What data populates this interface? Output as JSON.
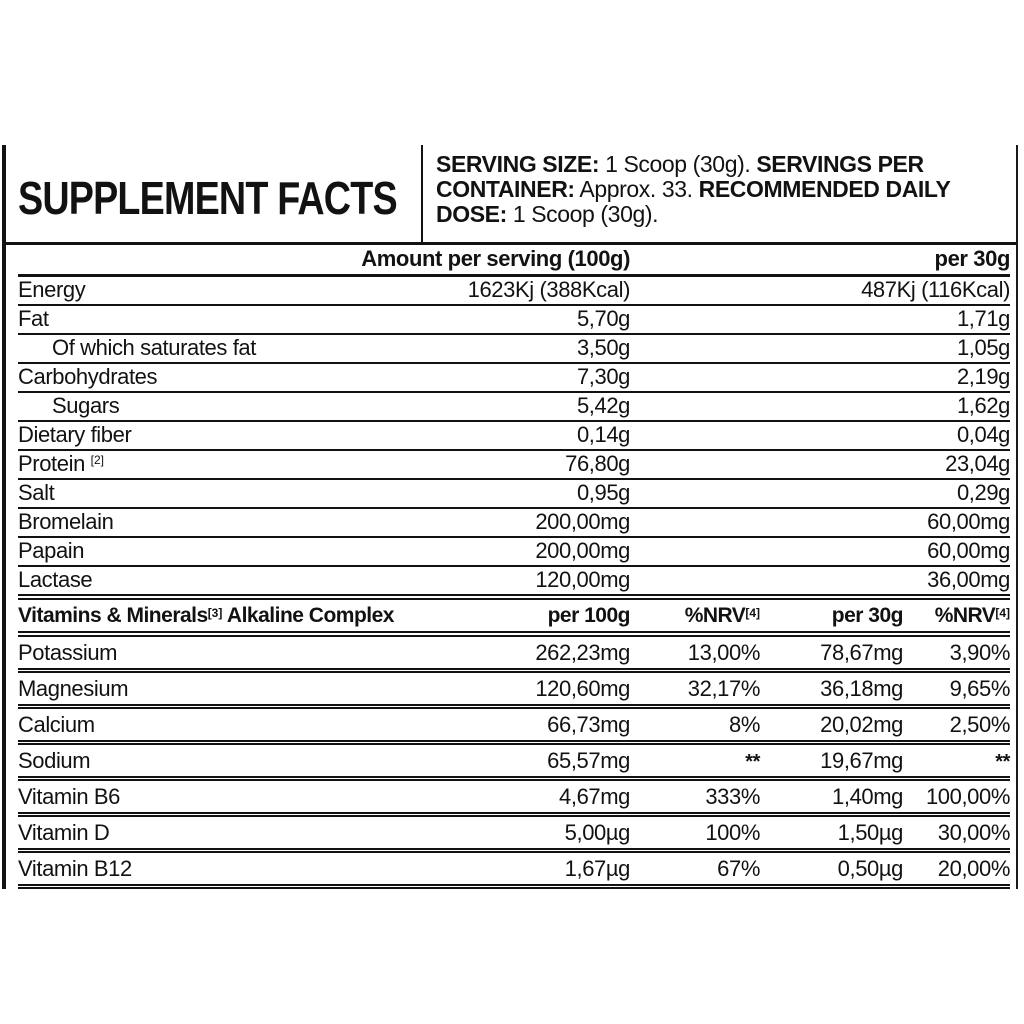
{
  "colors": {
    "ink": "#121212",
    "background": "#ffffff"
  },
  "header": {
    "title": "SUPPLEMENT FACTS",
    "serving": {
      "size_label": "SERVING SIZE:",
      "size_value": " 1 Scoop (30g). ",
      "container_label": "SERVINGS PER CONTAINER:",
      "container_value": " Approx. 33. ",
      "dose_label": "RECOMMENDED DAILY DOSE:",
      "dose_value": " 1 Scoop (30g)."
    }
  },
  "main_table": {
    "amount_header": "Amount per serving (100g)",
    "per30_header": "per 30g",
    "rows": [
      {
        "name": "Energy",
        "per100": "1623Kj (388Kcal)",
        "per30": "487Kj (116Kcal)"
      },
      {
        "name": "Fat",
        "per100": "5,70g",
        "per30": "1,71g"
      },
      {
        "name": "Of which saturates fat",
        "per100": "3,50g",
        "per30": "1,05g"
      },
      {
        "name": "Carbohydrates",
        "per100": "7,30g",
        "per30": "2,19g"
      },
      {
        "name": "Sugars",
        "per100": "5,42g",
        "per30": "1,62g"
      },
      {
        "name": "Dietary fiber",
        "per100": "0,14g",
        "per30": "0,04g"
      },
      {
        "name": "Protein",
        "sup": "[2]",
        "per100": "76,80g",
        "per30": "23,04g"
      },
      {
        "name": "Salt",
        "per100": "0,95g",
        "per30": "0,29g"
      },
      {
        "name": "Bromelain",
        "per100": "200,00mg",
        "per30": "60,00mg"
      },
      {
        "name": "Papain",
        "per100": "200,00mg",
        "per30": "60,00mg"
      },
      {
        "name": "Lactase",
        "per100": "120,00mg",
        "per30": "36,00mg"
      }
    ]
  },
  "vitamins_table": {
    "title": "Vitamins & Minerals",
    "title_sup": "[3]",
    "title_rest": " Alkaline Complex",
    "headers": {
      "per100": "per 100g",
      "nrv": "%NRV",
      "nrv_sup": "[4]",
      "per30": "per 30g"
    },
    "rows": [
      {
        "name": "Potassium",
        "per100": "262,23mg",
        "nrv100": "13,00%",
        "per30": "78,67mg",
        "nrv30": "3,90%"
      },
      {
        "name": "Magnesium",
        "per100": "120,60mg",
        "nrv100": "32,17%",
        "per30": "36,18mg",
        "nrv30": "9,65%"
      },
      {
        "name": "Calcium",
        "per100": "66,73mg",
        "nrv100": "8%",
        "per30": "20,02mg",
        "nrv30": "2,50%"
      },
      {
        "name": "Sodium",
        "per100": "65,57mg",
        "nrv100": "**",
        "per30": "19,67mg",
        "nrv30": "**"
      },
      {
        "name": "Vitamin B6",
        "per100": "4,67mg",
        "nrv100": "333%",
        "per30": "1,40mg",
        "nrv30": "100,00%"
      },
      {
        "name": "Vitamin D",
        "per100": "5,00µg",
        "nrv100": "100%",
        "per30": "1,50µg",
        "nrv30": "30,00%"
      },
      {
        "name": "Vitamin B12",
        "per100": "1,67µg",
        "nrv100": "67%",
        "per30": "0,50µg",
        "nrv30": "20,00%"
      }
    ]
  }
}
